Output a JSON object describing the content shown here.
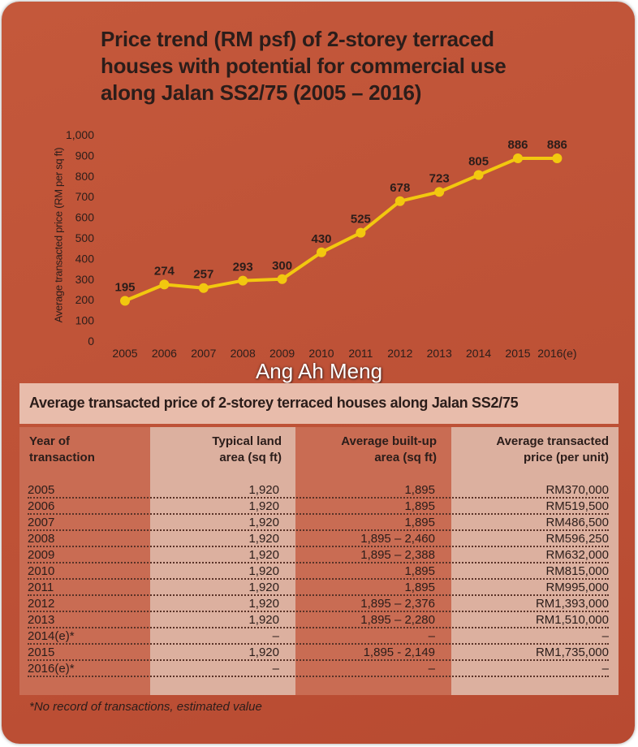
{
  "chart_data": {
    "type": "line",
    "title": "Price trend (RM psf) of 2-storey terraced houses with potential for commercial use along Jalan SS2/75 (2005 – 2016)",
    "ylabel": "Average transacted price (RM per sq ft)",
    "xlabel": "",
    "ylim": [
      0,
      1000
    ],
    "yticks": [
      "0",
      "100",
      "200",
      "300",
      "400",
      "500",
      "600",
      "700",
      "800",
      "900",
      "1,000"
    ],
    "categories": [
      "2005",
      "2006",
      "2007",
      "2008",
      "2009",
      "2010",
      "2011",
      "2012",
      "2013",
      "2014",
      "2015",
      "2016(e)"
    ],
    "values": [
      195,
      274,
      257,
      293,
      300,
      430,
      525,
      678,
      723,
      805,
      886,
      886
    ],
    "line_color": "#f2c80f",
    "grid": false
  },
  "watermark": "Ang Ah Meng",
  "table": {
    "title": "Average transacted price of 2-storey terraced houses along Jalan SS2/75",
    "headers": [
      [
        "Year of",
        "transaction"
      ],
      [
        "Typical land",
        "area (sq ft)"
      ],
      [
        "Average built-up",
        "area (sq ft)"
      ],
      [
        "Average transacted",
        "price (per unit)"
      ]
    ],
    "rows": [
      [
        "2005",
        "1,920",
        "1,895",
        "RM370,000"
      ],
      [
        "2006",
        "1,920",
        "1,895",
        "RM519,500"
      ],
      [
        "2007",
        "1,920",
        "1,895",
        "RM486,500"
      ],
      [
        "2008",
        "1,920",
        "1,895 – 2,460",
        "RM596,250"
      ],
      [
        "2009",
        "1,920",
        "1,895 – 2,388",
        "RM632,000"
      ],
      [
        "2010",
        "1,920",
        "1,895",
        "RM815,000"
      ],
      [
        "2011",
        "1,920",
        "1,895",
        "RM995,000"
      ],
      [
        "2012",
        "1,920",
        "1,895 – 2,376",
        "RM1,393,000"
      ],
      [
        "2013",
        "1,920",
        "1,895 – 2,280",
        "RM1,510,000"
      ],
      [
        "2014(e)*",
        "–",
        "–",
        "–"
      ],
      [
        "2015",
        "1,920",
        "1,895  - 2,149",
        "RM1,735,000"
      ],
      [
        "2016(e)*",
        "–",
        "–",
        "–"
      ]
    ],
    "footnote": "*No record of transactions, estimated value"
  }
}
